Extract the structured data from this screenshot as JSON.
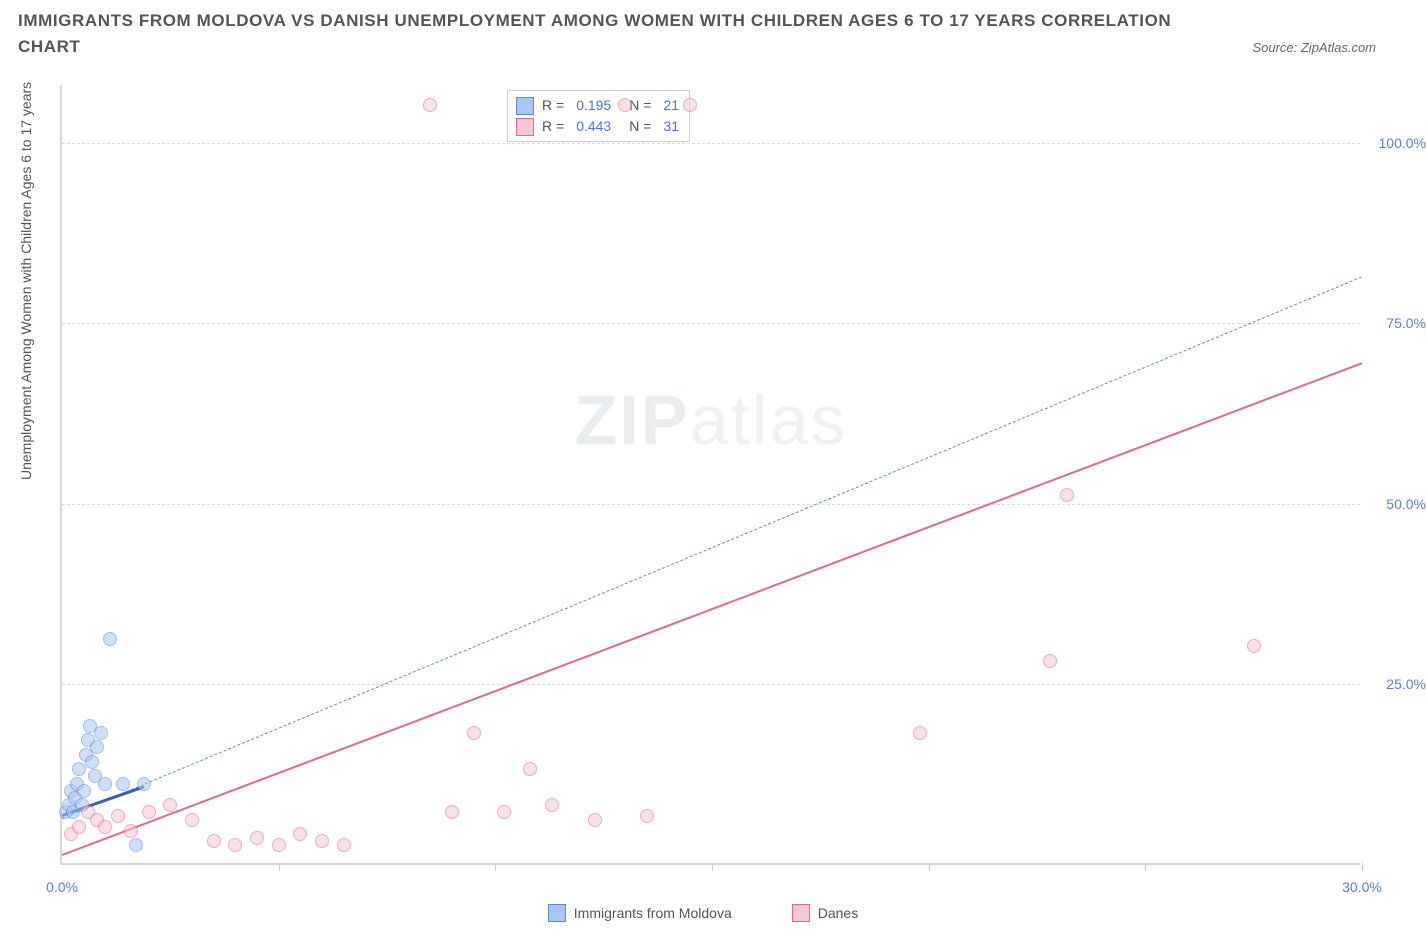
{
  "title": "IMMIGRANTS FROM MOLDOVA VS DANISH UNEMPLOYMENT AMONG WOMEN WITH CHILDREN AGES 6 TO 17 YEARS CORRELATION CHART",
  "source": "Source: ZipAtlas.com",
  "watermark_bold": "ZIP",
  "watermark_light": "atlas",
  "chart": {
    "type": "scatter",
    "ylabel": "Unemployment Among Women with Children Ages 6 to 17 years",
    "xlim": [
      0,
      30
    ],
    "ylim": [
      0,
      108
    ],
    "x_ticks": [
      0,
      5,
      10,
      15,
      20,
      25,
      30
    ],
    "x_tick_labels": {
      "0": "0.0%",
      "30": "30.0%"
    },
    "y_grid": [
      25,
      50,
      75,
      100
    ],
    "y_tick_labels": {
      "25": "25.0%",
      "50": "50.0%",
      "75": "75.0%",
      "100": "100.0%"
    },
    "background_color": "#ffffff",
    "grid_color": "#dddddd",
    "axis_color": "#d8d8d8",
    "label_color": "#5b7fd6",
    "marker_radius": 7,
    "marker_opacity": 0.55,
    "series": [
      {
        "key": "moldova",
        "label": "Immigrants from Moldova",
        "color_fill": "#a9c5f3",
        "color_stroke": "#5b8ad6",
        "r_label": "R =",
        "r_value": "0.195",
        "n_label": "N =",
        "n_value": "21",
        "trend": {
          "slope": 2.5,
          "intercept": 6.5,
          "dashed": true,
          "xmax": 30,
          "color": "#5b8ad6"
        },
        "trend_solid": {
          "slope": 2.1,
          "intercept": 7.0,
          "dashed": false,
          "xmax": 1.9,
          "color": "#3b5fc1"
        },
        "points": [
          [
            0.1,
            7
          ],
          [
            0.15,
            8
          ],
          [
            0.2,
            10
          ],
          [
            0.25,
            7
          ],
          [
            0.3,
            9
          ],
          [
            0.35,
            11
          ],
          [
            0.4,
            13
          ],
          [
            0.45,
            8
          ],
          [
            0.5,
            10
          ],
          [
            0.55,
            15
          ],
          [
            0.6,
            17
          ],
          [
            0.65,
            19
          ],
          [
            0.7,
            14
          ],
          [
            0.75,
            12
          ],
          [
            0.8,
            16
          ],
          [
            0.9,
            18
          ],
          [
            1.0,
            11
          ],
          [
            1.1,
            31
          ],
          [
            1.4,
            11
          ],
          [
            1.7,
            2.5
          ],
          [
            1.9,
            11
          ]
        ]
      },
      {
        "key": "danes",
        "label": "Danes",
        "color_fill": "#f7c7d6",
        "color_stroke": "#e86690",
        "r_label": "R =",
        "r_value": "0.443",
        "n_label": "N =",
        "n_value": "31",
        "trend": {
          "slope": 2.27,
          "intercept": 1.5,
          "dashed": false,
          "xmax": 30,
          "color": "#e86690"
        },
        "points": [
          [
            0.2,
            4
          ],
          [
            0.4,
            5
          ],
          [
            0.6,
            7
          ],
          [
            0.8,
            6
          ],
          [
            1.0,
            5
          ],
          [
            1.3,
            6.5
          ],
          [
            1.6,
            4.5
          ],
          [
            2.0,
            7
          ],
          [
            2.5,
            8
          ],
          [
            3.0,
            6
          ],
          [
            3.5,
            3
          ],
          [
            4.0,
            2.5
          ],
          [
            4.5,
            3.5
          ],
          [
            5.0,
            2.5
          ],
          [
            5.5,
            4
          ],
          [
            6.0,
            3
          ],
          [
            6.5,
            2.5
          ],
          [
            8.5,
            105
          ],
          [
            9.0,
            7
          ],
          [
            9.5,
            18
          ],
          [
            10.2,
            7
          ],
          [
            10.8,
            13
          ],
          [
            11.3,
            8
          ],
          [
            12.3,
            6
          ],
          [
            13.0,
            105
          ],
          [
            13.5,
            6.5
          ],
          [
            14.5,
            105
          ],
          [
            19.8,
            18
          ],
          [
            22.8,
            28
          ],
          [
            23.2,
            51
          ],
          [
            27.5,
            30
          ]
        ]
      }
    ]
  },
  "bottom_legend": [
    {
      "label": "Immigrants from Moldova",
      "fill": "#a9c5f3",
      "stroke": "#5b8ad6"
    },
    {
      "label": "Danes",
      "fill": "#f7c7d6",
      "stroke": "#e86690"
    }
  ]
}
